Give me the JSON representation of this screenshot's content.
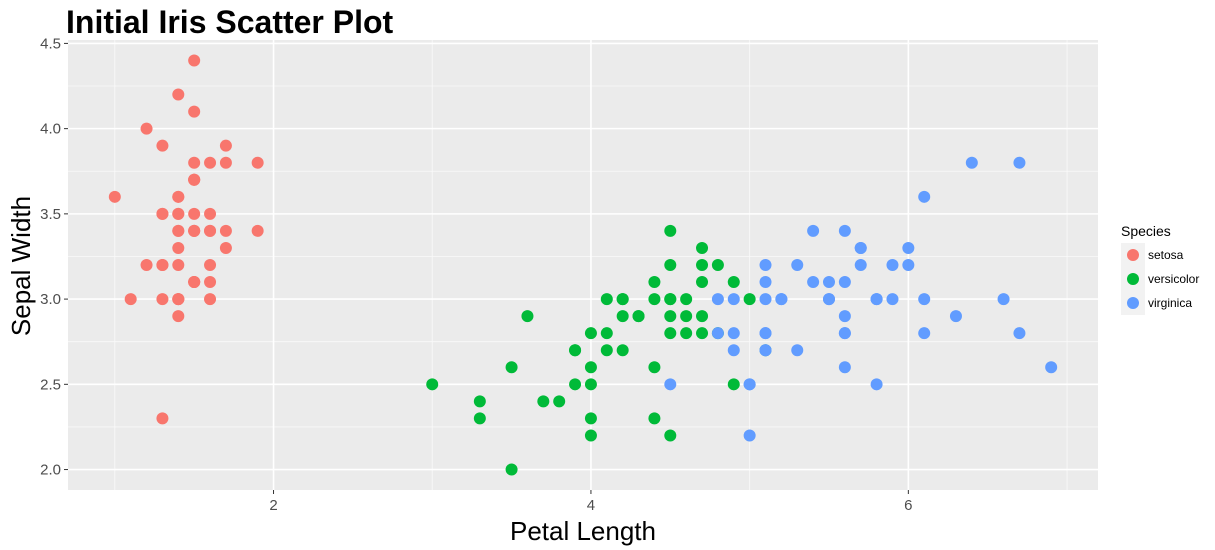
{
  "chart_data": {
    "type": "scatter",
    "title": "Initial Iris Scatter Plot",
    "xlabel": "Petal Length",
    "ylabel": "Sepal Width",
    "xlim": [
      0.705,
      7.195
    ],
    "ylim": [
      1.88,
      4.52
    ],
    "x_ticks": [
      2,
      4,
      6
    ],
    "x_tick_labels": [
      "2",
      "4",
      "6"
    ],
    "x_minor_ticks": [
      1,
      3,
      5,
      7
    ],
    "y_ticks": [
      2.0,
      2.5,
      3.0,
      3.5,
      4.0,
      4.5
    ],
    "y_tick_labels": [
      "2.0",
      "2.5",
      "3.0",
      "3.5",
      "4.0",
      "4.5"
    ],
    "y_minor_ticks": [
      2.25,
      2.75,
      3.25,
      3.75,
      4.25
    ],
    "grid": true,
    "legend": {
      "title": "Species",
      "position": "right"
    },
    "series": [
      {
        "name": "setosa",
        "color": "#F8766D",
        "points": [
          [
            1.4,
            3.5
          ],
          [
            1.4,
            3.0
          ],
          [
            1.3,
            3.2
          ],
          [
            1.5,
            3.1
          ],
          [
            1.4,
            3.6
          ],
          [
            1.7,
            3.9
          ],
          [
            1.4,
            3.4
          ],
          [
            1.5,
            3.4
          ],
          [
            1.4,
            2.9
          ],
          [
            1.5,
            3.1
          ],
          [
            1.5,
            3.7
          ],
          [
            1.6,
            3.4
          ],
          [
            1.4,
            3.0
          ],
          [
            1.1,
            3.0
          ],
          [
            1.2,
            4.0
          ],
          [
            1.5,
            4.4
          ],
          [
            1.3,
            3.9
          ],
          [
            1.4,
            3.5
          ],
          [
            1.7,
            3.8
          ],
          [
            1.5,
            3.8
          ],
          [
            1.7,
            3.4
          ],
          [
            1.5,
            3.7
          ],
          [
            1.0,
            3.6
          ],
          [
            1.7,
            3.3
          ],
          [
            1.9,
            3.4
          ],
          [
            1.6,
            3.0
          ],
          [
            1.6,
            3.4
          ],
          [
            1.5,
            3.5
          ],
          [
            1.4,
            3.4
          ],
          [
            1.6,
            3.2
          ],
          [
            1.6,
            3.1
          ],
          [
            1.5,
            3.4
          ],
          [
            1.5,
            4.1
          ],
          [
            1.4,
            4.2
          ],
          [
            1.5,
            3.1
          ],
          [
            1.2,
            3.2
          ],
          [
            1.3,
            3.5
          ],
          [
            1.4,
            3.6
          ],
          [
            1.3,
            3.0
          ],
          [
            1.5,
            3.4
          ],
          [
            1.3,
            3.5
          ],
          [
            1.3,
            2.3
          ],
          [
            1.3,
            3.2
          ],
          [
            1.6,
            3.5
          ],
          [
            1.9,
            3.8
          ],
          [
            1.4,
            3.0
          ],
          [
            1.6,
            3.8
          ],
          [
            1.4,
            3.2
          ],
          [
            1.5,
            3.7
          ],
          [
            1.4,
            3.3
          ]
        ]
      },
      {
        "name": "versicolor",
        "color": "#00BA38",
        "points": [
          [
            4.7,
            3.2
          ],
          [
            4.5,
            3.2
          ],
          [
            4.9,
            3.1
          ],
          [
            4.0,
            2.3
          ],
          [
            4.6,
            2.8
          ],
          [
            4.5,
            2.8
          ],
          [
            4.7,
            3.3
          ],
          [
            3.3,
            2.4
          ],
          [
            4.6,
            2.9
          ],
          [
            3.9,
            2.7
          ],
          [
            3.5,
            2.0
          ],
          [
            4.2,
            3.0
          ],
          [
            4.0,
            2.2
          ],
          [
            4.7,
            2.9
          ],
          [
            3.6,
            2.9
          ],
          [
            4.4,
            3.1
          ],
          [
            4.5,
            3.0
          ],
          [
            4.1,
            2.7
          ],
          [
            4.5,
            2.2
          ],
          [
            3.9,
            2.5
          ],
          [
            4.8,
            3.2
          ],
          [
            4.0,
            2.8
          ],
          [
            4.9,
            2.5
          ],
          [
            4.7,
            2.8
          ],
          [
            4.3,
            2.9
          ],
          [
            4.4,
            3.0
          ],
          [
            4.8,
            2.8
          ],
          [
            5.0,
            3.0
          ],
          [
            4.5,
            2.9
          ],
          [
            3.5,
            2.6
          ],
          [
            3.8,
            2.4
          ],
          [
            3.7,
            2.4
          ],
          [
            3.9,
            2.7
          ],
          [
            5.1,
            2.7
          ],
          [
            4.5,
            3.0
          ],
          [
            4.5,
            3.4
          ],
          [
            4.7,
            3.1
          ],
          [
            4.4,
            2.3
          ],
          [
            4.1,
            3.0
          ],
          [
            4.0,
            2.5
          ],
          [
            4.4,
            2.6
          ],
          [
            4.6,
            3.0
          ],
          [
            4.0,
            2.6
          ],
          [
            3.3,
            2.3
          ],
          [
            4.2,
            2.7
          ],
          [
            4.2,
            3.0
          ],
          [
            4.2,
            2.9
          ],
          [
            4.3,
            2.9
          ],
          [
            3.0,
            2.5
          ],
          [
            4.1,
            2.8
          ]
        ]
      },
      {
        "name": "virginica",
        "color": "#619CFF",
        "points": [
          [
            6.0,
            3.3
          ],
          [
            5.1,
            2.7
          ],
          [
            5.9,
            3.0
          ],
          [
            5.6,
            2.9
          ],
          [
            5.8,
            3.0
          ],
          [
            6.6,
            3.0
          ],
          [
            4.5,
            2.5
          ],
          [
            6.3,
            2.9
          ],
          [
            5.8,
            2.5
          ],
          [
            6.1,
            3.6
          ],
          [
            5.1,
            3.2
          ],
          [
            5.3,
            2.7
          ],
          [
            5.5,
            3.0
          ],
          [
            5.0,
            2.5
          ],
          [
            5.1,
            2.8
          ],
          [
            5.3,
            3.2
          ],
          [
            5.5,
            3.0
          ],
          [
            6.7,
            3.8
          ],
          [
            6.9,
            2.6
          ],
          [
            5.0,
            2.2
          ],
          [
            5.7,
            3.2
          ],
          [
            4.9,
            2.8
          ],
          [
            6.7,
            2.8
          ],
          [
            4.9,
            2.7
          ],
          [
            5.7,
            3.3
          ],
          [
            6.0,
            3.2
          ],
          [
            4.8,
            2.8
          ],
          [
            4.9,
            3.0
          ],
          [
            5.6,
            2.8
          ],
          [
            5.8,
            3.0
          ],
          [
            6.1,
            2.8
          ],
          [
            6.4,
            3.8
          ],
          [
            5.6,
            2.8
          ],
          [
            5.1,
            2.8
          ],
          [
            5.6,
            2.6
          ],
          [
            6.1,
            3.0
          ],
          [
            5.6,
            3.4
          ],
          [
            5.5,
            3.1
          ],
          [
            4.8,
            3.0
          ],
          [
            5.4,
            3.1
          ],
          [
            5.6,
            3.1
          ],
          [
            5.1,
            3.1
          ],
          [
            5.1,
            2.7
          ],
          [
            5.9,
            3.2
          ],
          [
            5.7,
            3.3
          ],
          [
            5.2,
            3.0
          ],
          [
            5.0,
            2.5
          ],
          [
            5.2,
            3.0
          ],
          [
            5.4,
            3.4
          ],
          [
            5.1,
            3.0
          ]
        ]
      }
    ]
  }
}
